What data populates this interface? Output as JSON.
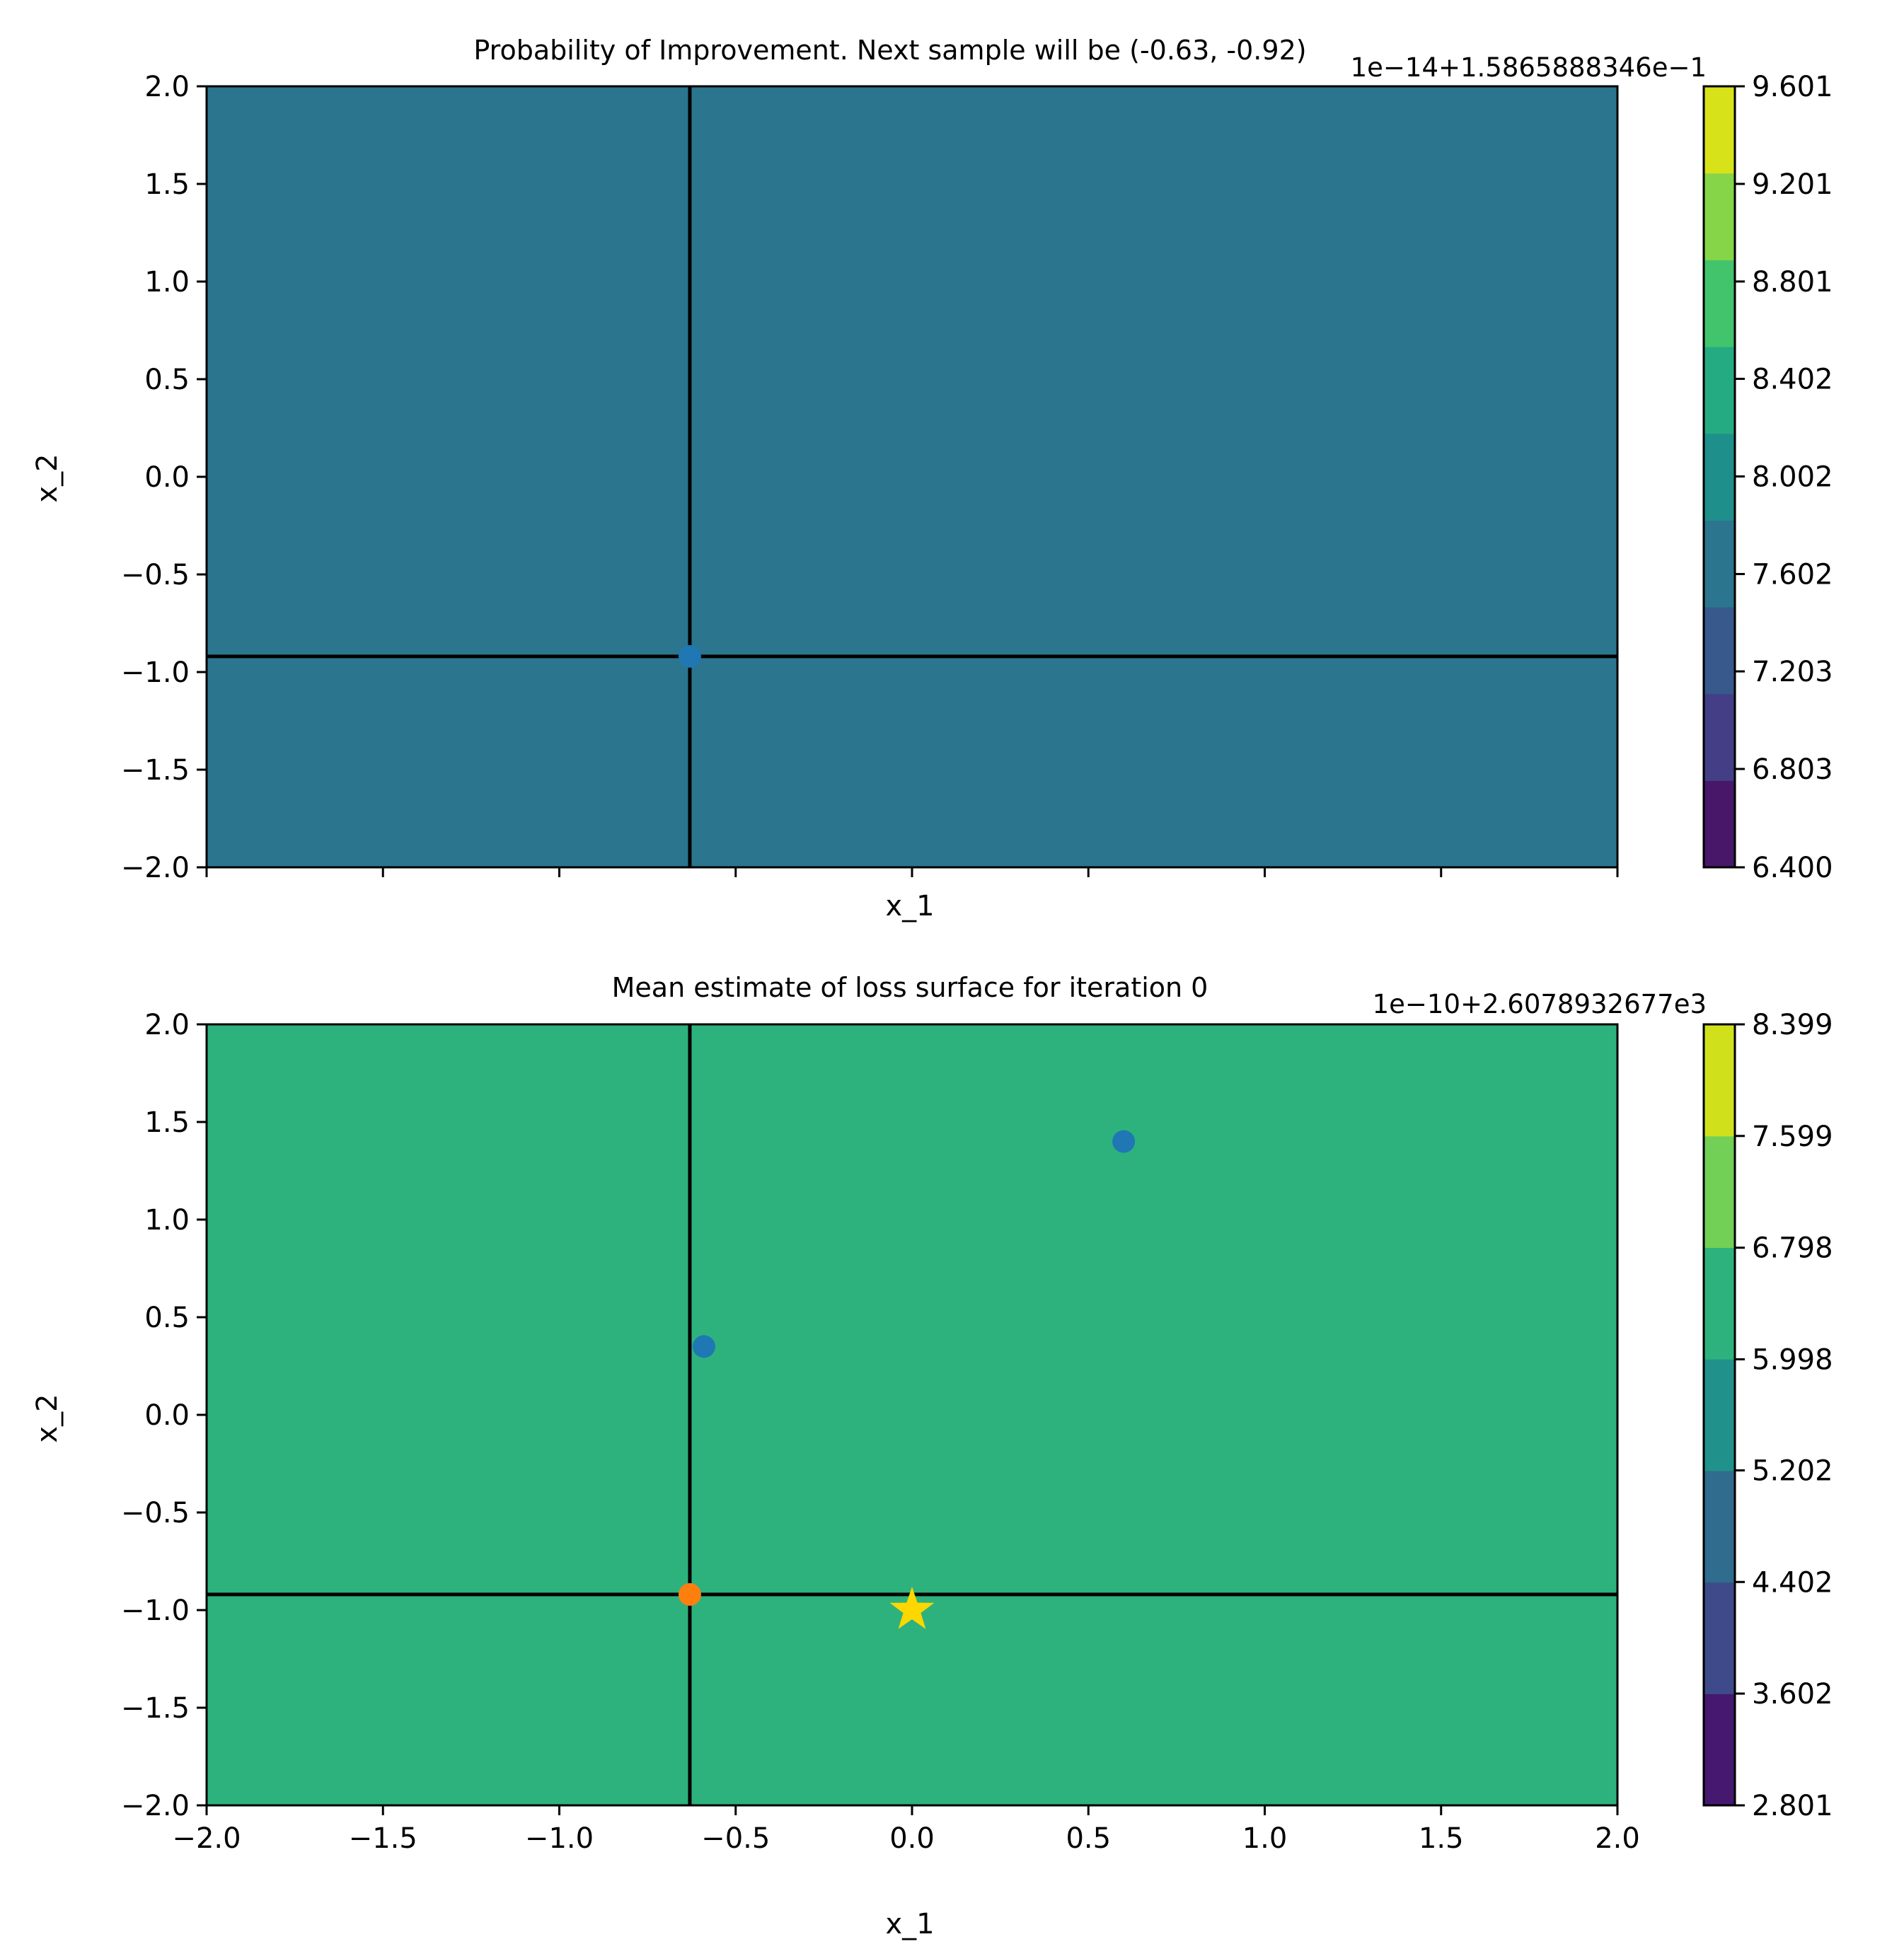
{
  "chart_data": [
    {
      "type": "contour",
      "title": "Probability of Improvement. Next sample will be (-0.63, -0.92)",
      "xlabel": "x_1",
      "ylabel": "x_2",
      "xlim": [
        -2.0,
        2.0
      ],
      "ylim": [
        -2.0,
        2.0
      ],
      "x_ticks": [
        -2.0,
        -1.5,
        -1.0,
        -0.5,
        0.0,
        0.5,
        1.0,
        1.5,
        2.0
      ],
      "x_tick_labels_visible": false,
      "y_ticks": [
        -2.0,
        -1.5,
        -1.0,
        -0.5,
        0.0,
        0.5,
        1.0,
        1.5,
        2.0
      ],
      "y_tick_labels": [
        "−2.0",
        "−1.5",
        "−1.0",
        "−0.5",
        "0.0",
        "0.5",
        "1.0",
        "1.5",
        "2.0"
      ],
      "fill_level": 7.602,
      "crosshair": {
        "x": -0.63,
        "y": -0.92
      },
      "points": [
        {
          "x": -0.63,
          "y": -0.92,
          "marker": "circle",
          "color": "#1f77b4"
        }
      ],
      "colorbar": {
        "offset_text": "1e−14+1.5865888346e−1",
        "levels": [
          6.4,
          6.803,
          7.203,
          7.602,
          8.002,
          8.402,
          8.801,
          9.201,
          9.601
        ],
        "tick_labels": [
          "6.400",
          "6.803",
          "7.203",
          "7.602",
          "8.002",
          "8.402",
          "8.801",
          "9.201",
          "9.601"
        ],
        "colors": [
          "#481769",
          "#433e85",
          "#38598c",
          "#2b758e",
          "#1f8f8b",
          "#25ab81",
          "#42c46d",
          "#86d549",
          "#d8e219"
        ]
      }
    },
    {
      "type": "contour",
      "title": "Mean estimate of loss surface for iteration 0",
      "xlabel": "x_1",
      "ylabel": "x_2",
      "xlim": [
        -2.0,
        2.0
      ],
      "ylim": [
        -2.0,
        2.0
      ],
      "x_ticks": [
        -2.0,
        -1.5,
        -1.0,
        -0.5,
        0.0,
        0.5,
        1.0,
        1.5,
        2.0
      ],
      "x_tick_labels": [
        "−2.0",
        "−1.5",
        "−1.0",
        "−0.5",
        "0.0",
        "0.5",
        "1.0",
        "1.5",
        "2.0"
      ],
      "y_ticks": [
        -2.0,
        -1.5,
        -1.0,
        -0.5,
        0.0,
        0.5,
        1.0,
        1.5,
        2.0
      ],
      "y_tick_labels": [
        "−2.0",
        "−1.5",
        "−1.0",
        "−0.5",
        "0.0",
        "0.5",
        "1.0",
        "1.5",
        "2.0"
      ],
      "fill_level": 5.998,
      "crosshair": {
        "x": -0.63,
        "y": -0.92
      },
      "points": [
        {
          "x": 0.6,
          "y": 1.4,
          "marker": "circle",
          "color": "#1f77b4"
        },
        {
          "x": -0.59,
          "y": 0.35,
          "marker": "circle",
          "color": "#1f77b4"
        },
        {
          "x": -0.63,
          "y": -0.92,
          "marker": "circle",
          "color": "#ff7f0e"
        },
        {
          "x": 0.0,
          "y": -1.0,
          "marker": "star",
          "color": "#ffd700"
        }
      ],
      "colorbar": {
        "offset_text": "1e−10+2.6078932677e3",
        "levels": [
          2.801,
          3.602,
          4.402,
          5.202,
          5.998,
          6.798,
          7.599,
          8.399
        ],
        "tick_labels": [
          "2.801",
          "3.602",
          "4.402",
          "5.202",
          "5.998",
          "6.798",
          "7.599",
          "8.399"
        ],
        "colors": [
          "#46186f",
          "#3e4a89",
          "#2f6c8e",
          "#21918c",
          "#2db27d",
          "#73d056",
          "#d0e11c"
        ]
      }
    }
  ]
}
